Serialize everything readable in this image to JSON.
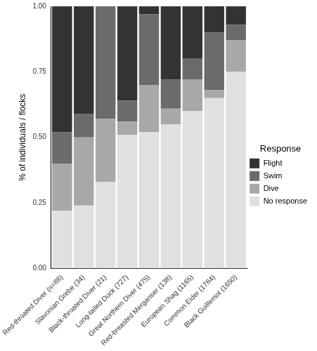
{
  "chart_data": {
    "type": "bar",
    "stacked": true,
    "grid": false,
    "legend": "right",
    "legend_title": "Response",
    "y_label": "% of individuals / flocks",
    "categories": [
      "Red-throated Diver (n=88)",
      "Slavonian Grebe (34)",
      "Black-throated Diver (21)",
      "Long-tailed Duck (727)",
      "Great Northern Diver (475)",
      "Red-breasted Merganser (138)",
      "European Shag (1165)",
      "Common Eider (1784)",
      "Black Guillemot (1650)"
    ],
    "series": [
      {
        "name": "No response",
        "color": "#e0e0e0",
        "values": [
          0.22,
          0.24,
          0.33,
          0.51,
          0.52,
          0.55,
          0.6,
          0.65,
          0.75
        ]
      },
      {
        "name": "Dive",
        "color": "#a8a8a8",
        "values": [
          0.18,
          0.26,
          0.24,
          0.05,
          0.18,
          0.06,
          0.12,
          0.03,
          0.12
        ]
      },
      {
        "name": "Swim",
        "color": "#6b6b6b",
        "values": [
          0.12,
          0.09,
          0.43,
          0.08,
          0.27,
          0.11,
          0.08,
          0.22,
          0.06
        ]
      },
      {
        "name": "Flight",
        "color": "#333333",
        "values": [
          0.48,
          0.41,
          0.0,
          0.36,
          0.03,
          0.28,
          0.2,
          0.1,
          0.07
        ]
      }
    ],
    "ylim": [
      0,
      1
    ],
    "yticks": [
      {
        "value": 0,
        "label": "0.00"
      },
      {
        "value": 0.25,
        "label": "0.25"
      },
      {
        "value": 0.5,
        "label": "0.50"
      },
      {
        "value": 0.75,
        "label": "0.75"
      },
      {
        "value": 1,
        "label": "1.00"
      }
    ]
  }
}
